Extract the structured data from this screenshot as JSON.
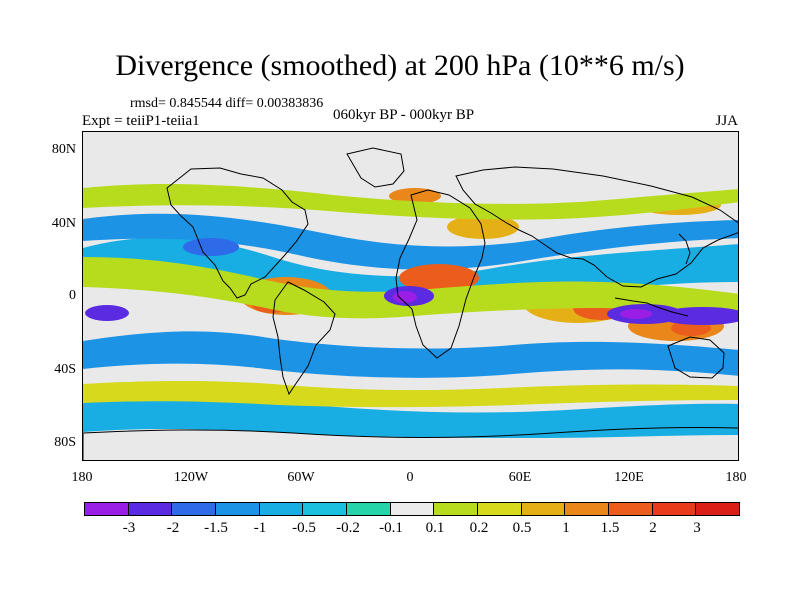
{
  "title": "Divergence (smoothed) at 200 hPa (10**6 m/s)",
  "stats": "rmsd= 0.845544 diff= 0.00383836",
  "experiment": "Expt = teiiP1-teiia1",
  "period": "060kyr BP - 000kyr BP",
  "season": "JJA",
  "map": {
    "y_labels": [
      "80N",
      "40N",
      "0",
      "40S",
      "80S"
    ],
    "x_labels": [
      "180",
      "120W",
      "60W",
      "0",
      "60E",
      "120E",
      "180"
    ],
    "lat_range": [
      -90,
      90
    ],
    "lon_range": [
      -180,
      180
    ]
  },
  "colorbar": {
    "labels": [
      "-3",
      "-2",
      "-1.5",
      "-1",
      "-0.5",
      "-0.2",
      "-0.1",
      "0.1",
      "0.2",
      "0.5",
      "1",
      "1.5",
      "2",
      "3"
    ],
    "colors": [
      "#9b1ee6",
      "#5a2be0",
      "#2d6be8",
      "#1d93e6",
      "#18aee3",
      "#1ac1df",
      "#26d4aa",
      "#ececec",
      "#b7dc1e",
      "#d6d91c",
      "#e4b016",
      "#e9871a",
      "#ea5d1c",
      "#e93a1a",
      "#d91f16"
    ]
  }
}
